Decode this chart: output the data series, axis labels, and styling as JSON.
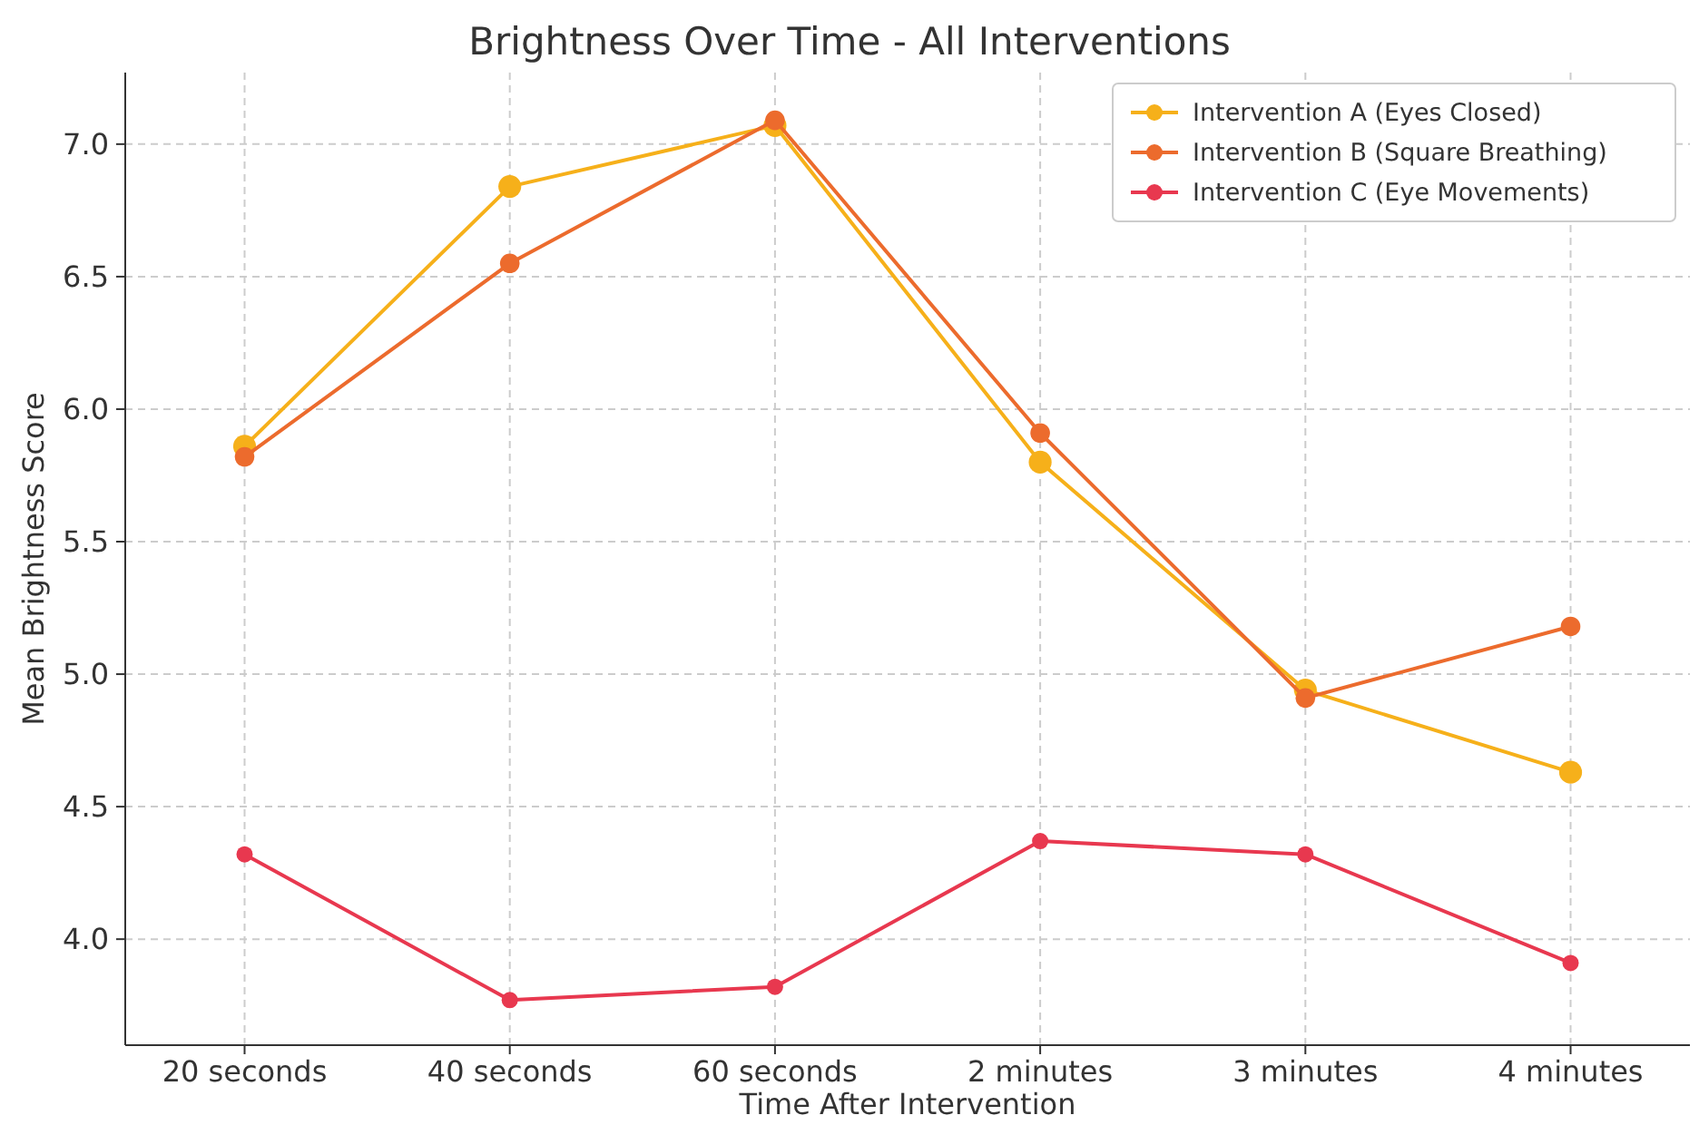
{
  "chart_data": {
    "type": "line",
    "title": "Brightness Over Time - All Interventions",
    "xlabel": "Time After Intervention",
    "ylabel": "Mean Brightness Score",
    "categories": [
      "20 seconds",
      "40 seconds",
      "60 seconds",
      "2 minutes",
      "3 minutes",
      "4 minutes"
    ],
    "series": [
      {
        "name": "Intervention A (Eyes Closed)",
        "color": "#f6b01a",
        "values": [
          5.86,
          6.84,
          7.07,
          5.8,
          4.94,
          4.63
        ]
      },
      {
        "name": "Intervention B (Square Breathing)",
        "color": "#ec6b2d",
        "values": [
          5.82,
          6.55,
          7.09,
          5.91,
          4.91,
          5.18
        ]
      },
      {
        "name": "Intervention C (Eye Movements)",
        "color": "#e8384f",
        "values": [
          4.32,
          3.77,
          3.82,
          4.37,
          4.32,
          3.91
        ]
      }
    ],
    "ylim": [
      3.6,
      7.27
    ],
    "yticks": [
      {
        "value": 4,
        "label": "4.0"
      },
      {
        "value": 4.5,
        "label": "4.5"
      },
      {
        "value": 5,
        "label": "5.0"
      },
      {
        "value": 5.5,
        "label": "5.5"
      },
      {
        "value": 6,
        "label": "6.0"
      },
      {
        "value": 6.5,
        "label": "6.5"
      },
      {
        "value": 7,
        "label": "7.0"
      }
    ],
    "grid": true,
    "legend": "top right",
    "marker": "circle",
    "line_style": "solid"
  }
}
